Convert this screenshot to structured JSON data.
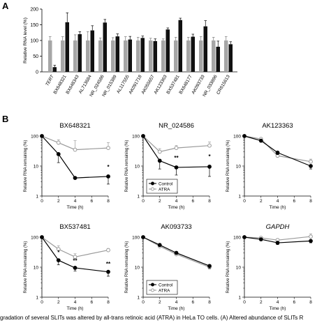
{
  "figure": {
    "panel_a_label": "A",
    "panel_b_label": "B",
    "caption": "gradation of several SLITs was altered by all-trans retinoic acid (ATRA) in HeLa TO cells. (A) Altered abundance of SLITs R"
  },
  "colors": {
    "control": "#a6a6a6",
    "atra": "#111111",
    "line_control": "#000000",
    "line_atra": "#9a9a9a"
  },
  "chart_data": [
    {
      "panel": "A",
      "type": "bar",
      "title": "",
      "xlabel": "",
      "ylabel": "Relative RNA level (%)",
      "ylim": [
        0,
        200
      ],
      "yticks": [
        0,
        50,
        100,
        150,
        200
      ],
      "categories": [
        "TERT",
        "BX648321",
        "BX648343",
        "AL713684",
        "NR_024586",
        "NR_015389",
        "AL117555",
        "AK091718",
        "AK055657",
        "AK123363",
        "BX537481",
        "BX648177",
        "AK093733",
        "NR_033896",
        "CR615613"
      ],
      "italic_categories": [
        "TERT"
      ],
      "series": [
        {
          "values": [
            100,
            100,
            100,
            100,
            100,
            100,
            100,
            100,
            100,
            100,
            100,
            100,
            100,
            100,
            100
          ],
          "errors": [
            12,
            12,
            18,
            28,
            8,
            9,
            12,
            10,
            7,
            5,
            10,
            10,
            12,
            10,
            12
          ]
        },
        {
          "values": [
            15,
            158,
            120,
            132,
            157,
            113,
            103,
            108,
            98,
            135,
            165,
            112,
            145,
            80,
            88
          ],
          "errors": [
            6,
            30,
            8,
            15,
            10,
            8,
            10,
            6,
            7,
            5,
            6,
            8,
            18,
            18,
            8
          ]
        }
      ],
      "grid": false
    },
    {
      "panel": "B1",
      "type": "line",
      "title": "BX648321",
      "xlabel": "Time (h)",
      "ylabel": "Relative RNA remaining (%)",
      "yscale": "log",
      "ylim": [
        1,
        100
      ],
      "yticks": [
        "1",
        "10",
        "100"
      ],
      "x": [
        0,
        2,
        4,
        8
      ],
      "xticks": [
        "0",
        "2",
        "4",
        "6",
        "8"
      ],
      "xlim": [
        0,
        8
      ],
      "legend_position": "none",
      "series": [
        {
          "name": "Control",
          "values": [
            100,
            25,
            4,
            4.5
          ],
          "errors": [
            0,
            12,
            0,
            2
          ]
        },
        {
          "name": "ATRA",
          "values": [
            100,
            60,
            35,
            40
          ],
          "errors": [
            0,
            15,
            35,
            20
          ]
        }
      ],
      "annotations": [
        {
          "x": 8,
          "text": "*"
        }
      ]
    },
    {
      "panel": "B2",
      "type": "line",
      "title": "NR_024586",
      "xlabel": "Time (h)",
      "ylabel": "Relative RNA remaining (%)",
      "yscale": "log",
      "ylim": [
        1,
        100
      ],
      "yticks": [
        "1",
        "10",
        "100"
      ],
      "x": [
        0,
        2,
        4,
        8
      ],
      "xticks": [
        "0",
        "2",
        "4",
        "6",
        "8"
      ],
      "xlim": [
        0,
        8
      ],
      "legend_position": "bottom-right",
      "legend": [
        "Control",
        "ATRA"
      ],
      "series": [
        {
          "name": "Control",
          "values": [
            100,
            15,
            9,
            9.5
          ],
          "errors": [
            0,
            7,
            4,
            5
          ]
        },
        {
          "name": "ATRA",
          "values": [
            100,
            30,
            40,
            48
          ],
          "errors": [
            0,
            8,
            8,
            15
          ]
        }
      ],
      "annotations": [
        {
          "x": 4,
          "text": "**"
        },
        {
          "x": 8,
          "text": "*"
        }
      ]
    },
    {
      "panel": "B3",
      "type": "line",
      "title": "AK123363",
      "xlabel": "Time (h)",
      "ylabel": "Relative RNA remaining (%)",
      "yscale": "log",
      "ylim": [
        1,
        100
      ],
      "yticks": [
        "1",
        "10",
        "100"
      ],
      "x": [
        0,
        2,
        4,
        8
      ],
      "xticks": [
        "0",
        "2",
        "4",
        "6",
        "8"
      ],
      "xlim": [
        0,
        8
      ],
      "legend_position": "none",
      "series": [
        {
          "name": "Control",
          "values": [
            100,
            70,
            28,
            10
          ],
          "errors": [
            0,
            5,
            4,
            2
          ]
        },
        {
          "name": "ATRA",
          "values": [
            100,
            80,
            22,
            14
          ],
          "errors": [
            0,
            6,
            4,
            3
          ]
        }
      ],
      "annotations": []
    },
    {
      "panel": "B4",
      "type": "line",
      "title": "BX537481",
      "xlabel": "Time (h)",
      "ylabel": "Relative RNA remaining (%)",
      "yscale": "log",
      "ylim": [
        1,
        100
      ],
      "yticks": [
        "1",
        "10",
        "100"
      ],
      "x": [
        0,
        2,
        4,
        8
      ],
      "xticks": [
        "0",
        "2",
        "4",
        "6",
        "8"
      ],
      "xlim": [
        0,
        8
      ],
      "legend_position": "none",
      "series": [
        {
          "name": "Control",
          "values": [
            100,
            17,
            9.5,
            7
          ],
          "errors": [
            0,
            5,
            2,
            2
          ]
        },
        {
          "name": "ATRA",
          "values": [
            100,
            40,
            22,
            37
          ],
          "errors": [
            0,
            12,
            6,
            5
          ]
        }
      ],
      "annotations": [
        {
          "x": 2,
          "text": "*"
        },
        {
          "x": 4,
          "text": "**"
        },
        {
          "x": 8,
          "text": "**"
        }
      ]
    },
    {
      "panel": "B5",
      "type": "line",
      "title": "AK093733",
      "xlabel": "Time (h)",
      "ylabel": "Relative RNA remaining (%)",
      "yscale": "log",
      "ylim": [
        1,
        100
      ],
      "yticks": [
        "1",
        "10",
        "100"
      ],
      "x": [
        0,
        2,
        4,
        8
      ],
      "xticks": [
        "0",
        "2",
        "4",
        "6",
        "8"
      ],
      "xlim": [
        0,
        8
      ],
      "legend_position": "bottom-right",
      "legend": [
        "Control",
        "ATRA"
      ],
      "series": [
        {
          "name": "Control",
          "values": [
            100,
            55,
            30,
            11
          ],
          "errors": [
            0,
            4,
            3,
            2
          ]
        },
        {
          "name": "ATRA",
          "values": [
            100,
            50,
            27,
            10
          ],
          "errors": [
            0,
            4,
            3,
            2
          ]
        }
      ],
      "annotations": []
    },
    {
      "panel": "B6",
      "type": "line",
      "title": "GAPDH",
      "title_italic": true,
      "xlabel": "Time (h)",
      "ylabel": "Relative RNA remaining (%)",
      "yscale": "log",
      "ylim": [
        1,
        100
      ],
      "yticks": [
        "1",
        "10",
        "100"
      ],
      "x": [
        0,
        2,
        4,
        8
      ],
      "xticks": [
        "0",
        "2",
        "4",
        "6",
        "8"
      ],
      "xlim": [
        0,
        8
      ],
      "legend_position": "none",
      "series": [
        {
          "name": "Control",
          "values": [
            100,
            85,
            65,
            75
          ],
          "errors": [
            0,
            8,
            8,
            10
          ]
        },
        {
          "name": "ATRA",
          "values": [
            100,
            95,
            80,
            105
          ],
          "errors": [
            0,
            8,
            10,
            25
          ]
        }
      ],
      "annotations": []
    }
  ]
}
